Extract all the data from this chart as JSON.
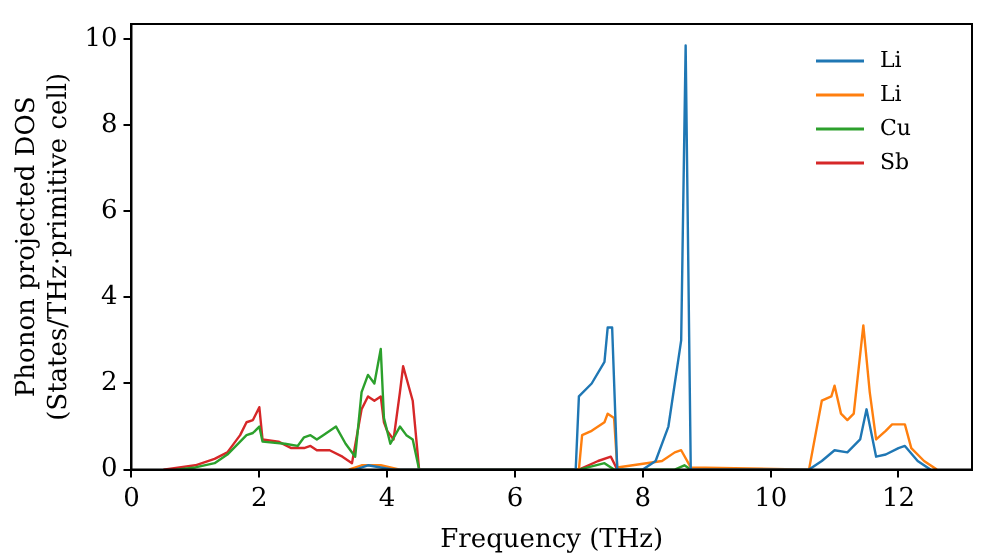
{
  "chart_data": {
    "type": "line",
    "xlabel": "Frequency (THz)",
    "ylabel": "Phonon projected DOS\n(States/THz·primitive cell)",
    "xlim": [
      0,
      13.15
    ],
    "ylim": [
      0,
      10.35
    ],
    "xticks": [
      0,
      2,
      4,
      6,
      8,
      10,
      12
    ],
    "yticks": [
      0,
      2,
      4,
      6,
      8,
      10
    ],
    "grid": false,
    "legend": "top right",
    "marker": "none",
    "series": [
      {
        "name": "Li",
        "color": "#1f77b4",
        "x": [
          3.5,
          3.7,
          3.9,
          4.1,
          6.95,
          7.0,
          7.2,
          7.4,
          7.45,
          7.52,
          7.6,
          8.0,
          8.2,
          8.4,
          8.5,
          8.6,
          8.67,
          8.75,
          10.6,
          10.8,
          11.0,
          11.2,
          11.4,
          11.5,
          11.65,
          11.8,
          12.0,
          12.1,
          12.3,
          12.5
        ],
        "values": [
          0,
          0.1,
          0.05,
          0,
          0,
          1.7,
          2.0,
          2.5,
          3.3,
          3.3,
          0,
          0,
          0.2,
          1.0,
          2.0,
          3.0,
          9.85,
          0,
          0,
          0.2,
          0.45,
          0.4,
          0.7,
          1.4,
          0.3,
          0.35,
          0.5,
          0.55,
          0.2,
          0
        ]
      },
      {
        "name": "Li",
        "color": "#ff7f0e",
        "x": [
          3.4,
          3.6,
          3.9,
          4.2,
          7.0,
          7.05,
          7.2,
          7.4,
          7.45,
          7.55,
          7.6,
          8.3,
          8.5,
          8.6,
          8.75,
          10.6,
          10.8,
          10.95,
          11.0,
          11.1,
          11.2,
          11.3,
          11.45,
          11.55,
          11.65,
          11.8,
          11.9,
          12.1,
          12.2,
          12.4,
          12.6
        ],
        "values": [
          0,
          0.1,
          0.1,
          0,
          0,
          0.8,
          0.9,
          1.1,
          1.3,
          1.2,
          0.05,
          0.2,
          0.4,
          0.45,
          0.05,
          0,
          1.6,
          1.7,
          1.95,
          1.3,
          1.15,
          1.3,
          3.35,
          1.8,
          0.7,
          0.9,
          1.05,
          1.05,
          0.5,
          0.2,
          0
        ]
      },
      {
        "name": "Cu",
        "color": "#2ca02c",
        "x": [
          0.7,
          1.0,
          1.3,
          1.5,
          1.7,
          1.8,
          1.9,
          2.0,
          2.05,
          2.4,
          2.6,
          2.7,
          2.8,
          2.9,
          3.0,
          3.2,
          3.35,
          3.5,
          3.6,
          3.7,
          3.8,
          3.9,
          3.95,
          4.05,
          4.2,
          4.3,
          4.4,
          4.5,
          7.0,
          7.4,
          7.55,
          8.5,
          8.65,
          8.75
        ],
        "values": [
          0,
          0.05,
          0.15,
          0.35,
          0.65,
          0.8,
          0.85,
          1.0,
          0.65,
          0.6,
          0.55,
          0.75,
          0.8,
          0.7,
          0.8,
          1.0,
          0.6,
          0.3,
          1.8,
          2.2,
          2.0,
          2.8,
          1.2,
          0.6,
          1.0,
          0.8,
          0.7,
          0,
          0,
          0.15,
          0,
          0,
          0.1,
          0
        ]
      },
      {
        "name": "Sb",
        "color": "#d62728",
        "x": [
          0.5,
          1.0,
          1.3,
          1.5,
          1.7,
          1.8,
          1.9,
          2.0,
          2.05,
          2.3,
          2.5,
          2.7,
          2.8,
          2.9,
          3.1,
          3.3,
          3.45,
          3.6,
          3.7,
          3.8,
          3.9,
          3.95,
          4.0,
          4.1,
          4.2,
          4.25,
          4.4,
          4.5,
          7.0,
          7.3,
          7.5,
          7.6
        ],
        "values": [
          0,
          0.1,
          0.25,
          0.4,
          0.8,
          1.1,
          1.15,
          1.45,
          0.7,
          0.65,
          0.5,
          0.5,
          0.55,
          0.45,
          0.45,
          0.3,
          0.15,
          1.4,
          1.7,
          1.6,
          1.7,
          1.1,
          0.9,
          0.7,
          1.8,
          2.4,
          1.6,
          0,
          0,
          0.2,
          0.3,
          0
        ]
      }
    ]
  }
}
